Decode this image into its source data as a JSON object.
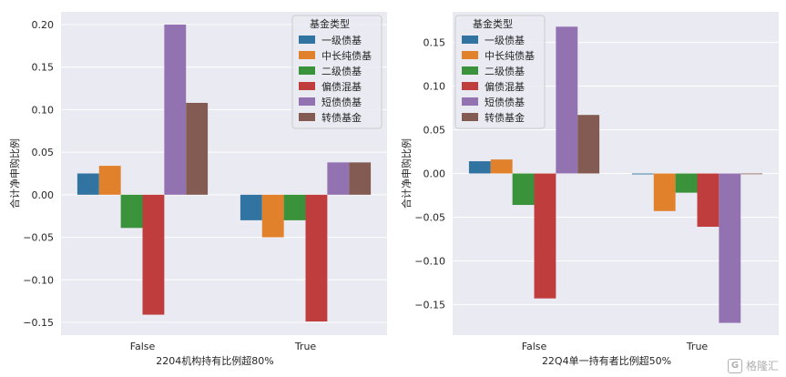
{
  "watermark": {
    "text": "格隆汇",
    "logo": "G"
  },
  "chart_data": [
    {
      "type": "bar",
      "xlabel": "2204机构持有比例超80%",
      "ylabel": "合计净申购比例",
      "categories": [
        "False",
        "True"
      ],
      "ylim": [
        -0.165,
        0.215
      ],
      "yticks": [
        -0.15,
        -0.1,
        -0.05,
        0.0,
        0.05,
        0.1,
        0.15,
        0.2
      ],
      "ytick_labels": [
        "−0.15",
        "−0.10",
        "−0.05",
        "0.00",
        "0.05",
        "0.10",
        "0.15",
        "0.20"
      ],
      "grid": true,
      "legend": {
        "title": "基金类型",
        "placement": "top-right"
      },
      "series": [
        {
          "name": "一级债基",
          "color": "#3274a1",
          "values": [
            0.025,
            -0.03
          ]
        },
        {
          "name": "中长纯债基",
          "color": "#e1812c",
          "values": [
            0.034,
            -0.05
          ]
        },
        {
          "name": "二级债基",
          "color": "#3a923a",
          "values": [
            -0.039,
            -0.03
          ]
        },
        {
          "name": "偏债混基",
          "color": "#c03d3e",
          "values": [
            -0.141,
            -0.149
          ]
        },
        {
          "name": "短债债基",
          "color": "#9372b2",
          "values": [
            0.2,
            0.038
          ]
        },
        {
          "name": "转债基金",
          "color": "#845b53",
          "values": [
            0.108,
            0.038
          ]
        }
      ]
    },
    {
      "type": "bar",
      "xlabel": "22Q4单一持有者比例超50%",
      "ylabel": "合计净申购比例",
      "categories": [
        "False",
        "True"
      ],
      "ylim": [
        -0.185,
        0.185
      ],
      "yticks": [
        -0.15,
        -0.1,
        -0.05,
        0.0,
        0.05,
        0.1,
        0.15
      ],
      "ytick_labels": [
        "−0.15",
        "−0.10",
        "−0.05",
        "0.00",
        "0.05",
        "0.10",
        "0.15"
      ],
      "grid": true,
      "legend": {
        "title": "基金类型",
        "placement": "top-left"
      },
      "series": [
        {
          "name": "一级债基",
          "color": "#3274a1",
          "values": [
            0.014,
            -0.001
          ]
        },
        {
          "name": "中长纯债基",
          "color": "#e1812c",
          "values": [
            0.016,
            -0.043
          ]
        },
        {
          "name": "二级债基",
          "color": "#3a923a",
          "values": [
            -0.036,
            -0.022
          ]
        },
        {
          "name": "偏债混基",
          "color": "#c03d3e",
          "values": [
            -0.143,
            -0.061
          ]
        },
        {
          "name": "短债债基",
          "color": "#9372b2",
          "values": [
            0.168,
            -0.171
          ]
        },
        {
          "name": "转债基金",
          "color": "#845b53",
          "values": [
            0.067,
            0.0
          ]
        }
      ]
    }
  ]
}
